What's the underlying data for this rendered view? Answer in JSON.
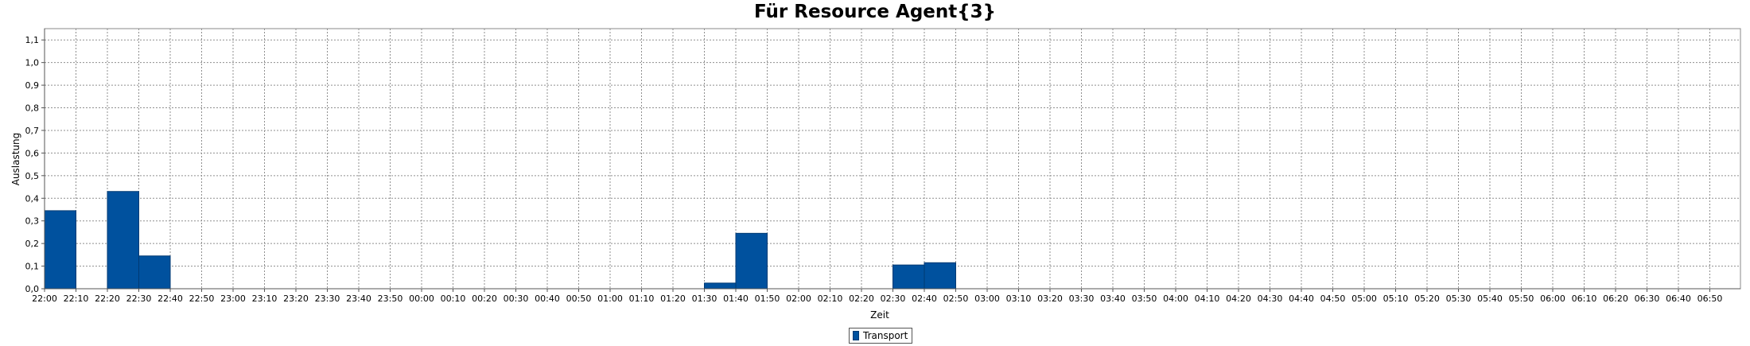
{
  "chart_data": {
    "type": "bar",
    "title": "Für Resource Agent{3}",
    "xlabel": "Zeit",
    "ylabel": "Auslastung",
    "ylim": [
      0,
      1.15
    ],
    "yticks": [
      "0,0",
      "0,1",
      "0,2",
      "0,3",
      "0,4",
      "0,5",
      "0,6",
      "0,7",
      "0,8",
      "0,9",
      "1,0",
      "1,1"
    ],
    "categories": [
      "22:00",
      "22:10",
      "22:20",
      "22:30",
      "22:40",
      "22:50",
      "23:00",
      "23:10",
      "23:20",
      "23:30",
      "23:40",
      "23:50",
      "00:00",
      "00:10",
      "00:20",
      "00:30",
      "00:40",
      "00:50",
      "01:00",
      "01:10",
      "01:20",
      "01:30",
      "01:40",
      "01:50",
      "02:00",
      "02:10",
      "02:20",
      "02:30",
      "02:40",
      "02:50",
      "03:00",
      "03:10",
      "03:20",
      "03:30",
      "03:40",
      "03:50",
      "04:00",
      "04:10",
      "04:20",
      "04:30",
      "04:40",
      "04:50",
      "05:00",
      "05:10",
      "05:20",
      "05:30",
      "05:40",
      "05:50",
      "06:00",
      "06:10",
      "06:20",
      "06:30",
      "06:40",
      "06:50"
    ],
    "grid": true,
    "legend_position": "bottom-center",
    "series": [
      {
        "name": "Transport",
        "color": "#00519e",
        "values": [
          0.345,
          0,
          0.43,
          0.145,
          0,
          0,
          0,
          0,
          0,
          0,
          0,
          0,
          0,
          0,
          0,
          0,
          0,
          0,
          0,
          0,
          0,
          0.025,
          0.245,
          0,
          0,
          0,
          0,
          0.105,
          0.115,
          0,
          0,
          0,
          0,
          0,
          0,
          0,
          0,
          0,
          0,
          0,
          0,
          0,
          0,
          0,
          0,
          0,
          0,
          0,
          0,
          0,
          0,
          0,
          0,
          0
        ]
      }
    ]
  }
}
